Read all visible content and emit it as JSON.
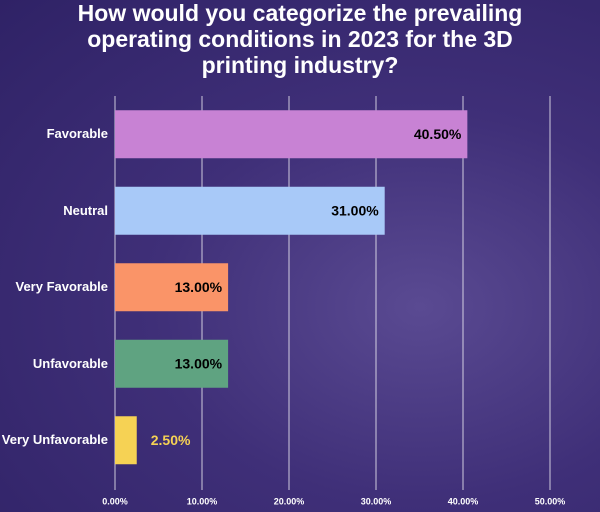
{
  "chart_data": {
    "type": "hbar",
    "title": "How would you categorize the prevailing operating conditions in 2023 for the 3D printing industry?",
    "categories": [
      "Favorable",
      "Neutral",
      "Very Favorable",
      "Unfavorable",
      "Very Unfavorable"
    ],
    "values": [
      40.5,
      31,
      13,
      13,
      2.5
    ],
    "value_labels": [
      "40.50%",
      "31.00%",
      "13.00%",
      "13.00%",
      "2.50%"
    ],
    "colors": [
      "#c882d4",
      "#a8c9f8",
      "#fa9468",
      "#5fa381",
      "#f6d254"
    ],
    "xlim": [
      0,
      50
    ],
    "xticks": [
      {
        "value": 0,
        "label": "0.00%"
      },
      {
        "value": 10,
        "label": "10.00%"
      },
      {
        "value": 20,
        "label": "20.00%"
      },
      {
        "value": 30,
        "label": "30.00%"
      },
      {
        "value": 40,
        "label": "40.00%"
      },
      {
        "value": 50,
        "label": "50.00%"
      }
    ],
    "grid": true
  }
}
